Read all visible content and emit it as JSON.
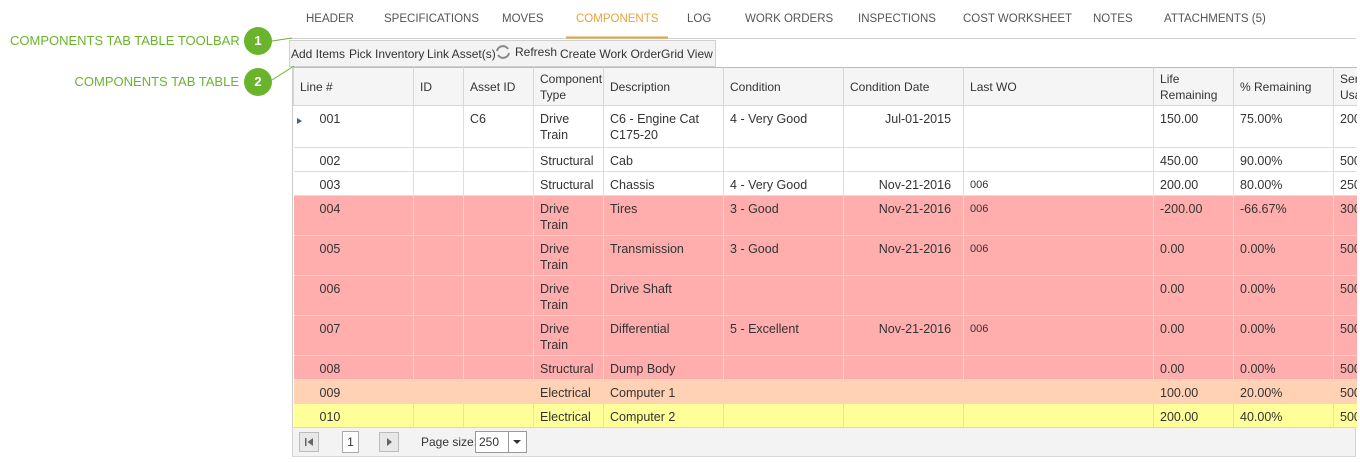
{
  "tabs": [
    "HEADER",
    "SPECIFICATIONS",
    "MOVES",
    "COMPONENTS",
    "LOG",
    "WORK ORDERS",
    "INSPECTIONS",
    "COST WORKSHEET",
    "NOTES",
    "ATTACHMENTS (5)"
  ],
  "callouts": [
    {
      "number": "1",
      "label": "COMPONENTS TAB TABLE TOOLBAR"
    },
    {
      "number": "2",
      "label": "COMPONENTS TAB TABLE"
    }
  ],
  "toolbar": [
    "Add Items",
    "Pick Inventory",
    "Link Asset(s)",
    "Refresh",
    "Create Work Order",
    "Grid View"
  ],
  "table": {
    "columns": [
      "Line #",
      "ID",
      "Asset ID",
      "Component Type",
      "Description",
      "Condition",
      "Condition Date",
      "Last WO",
      "Life Remaining",
      "% Remaining",
      "Service Usage"
    ],
    "rows": [
      [
        "001",
        null,
        "C6",
        "Drive Train",
        "C6 - Engine Cat C175-20",
        "4 - Very Good",
        "Jul-01-2015",
        null,
        "150.00",
        "75.00%",
        "200"
      ],
      [
        "002",
        null,
        null,
        "Structural",
        "Cab",
        null,
        null,
        null,
        "450.00",
        "90.00%",
        "500"
      ],
      [
        "003",
        null,
        null,
        "Structural",
        "Chassis",
        "4 - Very Good",
        "Nov-21-2016",
        "006",
        "200.00",
        "80.00%",
        "250"
      ],
      [
        "004",
        null,
        null,
        "Drive Train",
        "Tires",
        "3 - Good",
        "Nov-21-2016",
        "006",
        "-200.00",
        "-66.67%",
        "300"
      ],
      [
        "005",
        null,
        null,
        "Drive Train",
        "Transmission",
        "3 - Good",
        "Nov-21-2016",
        "006",
        "0.00",
        "0.00%",
        "500"
      ],
      [
        "006",
        null,
        null,
        "Drive Train",
        "Drive Shaft",
        null,
        null,
        null,
        "0.00",
        "0.00%",
        "500"
      ],
      [
        "007",
        null,
        null,
        "Drive Train",
        "Differential",
        "5 - Excellent",
        "Nov-21-2016",
        "006",
        "0.00",
        "0.00%",
        "500"
      ],
      [
        "008",
        null,
        null,
        "Structural",
        "Dump Body",
        null,
        null,
        null,
        "0.00",
        "0.00%",
        "500"
      ],
      [
        "009",
        null,
        null,
        "Electrical",
        "Computer 1",
        null,
        null,
        null,
        "100.00",
        "20.00%",
        "500"
      ],
      [
        "010",
        null,
        null,
        "Electrical",
        "Computer 2",
        null,
        null,
        null,
        "200.00",
        "40.00%",
        "500"
      ]
    ]
  },
  "pager": {
    "page": "1",
    "page_size_label": "Page size:",
    "page_size": "250"
  }
}
